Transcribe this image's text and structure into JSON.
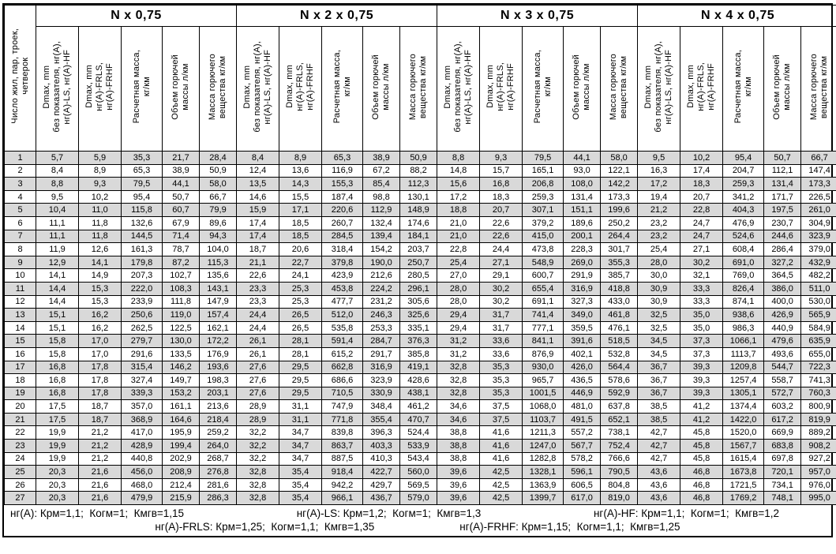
{
  "table": {
    "corner_header": "Число жил, пар, троек,\nчетверок",
    "groups": [
      {
        "title": "N x 0,75"
      },
      {
        "title": "N x 2 x 0,75"
      },
      {
        "title": "N x 3 x 0,75"
      },
      {
        "title": "N x 4 x 0,75"
      }
    ],
    "subcolumns": [
      "Dmax, mm\nбез показателя, нг(А),\nнг(А)-LS, нг(А)-HF",
      "Dmax, mm\nнг(А)-FRLS,\nнг(А)-FRHF",
      "Расчетная масса,\nкг/км",
      "Объем горючей\nмассы л/км",
      "Масса горючего\nвещества кг/км"
    ],
    "rows": [
      [
        "1",
        "5,7",
        "5,9",
        "35,3",
        "21,7",
        "28,4",
        "8,4",
        "8,9",
        "65,3",
        "38,9",
        "50,9",
        "8,8",
        "9,3",
        "79,5",
        "44,1",
        "58,0",
        "9,5",
        "10,2",
        "95,4",
        "50,7",
        "66,7"
      ],
      [
        "2",
        "8,4",
        "8,9",
        "65,3",
        "38,9",
        "50,9",
        "12,4",
        "13,6",
        "116,9",
        "67,2",
        "88,2",
        "14,8",
        "15,7",
        "165,1",
        "93,0",
        "122,1",
        "16,3",
        "17,4",
        "204,7",
        "112,1",
        "147,4"
      ],
      [
        "3",
        "8,8",
        "9,3",
        "79,5",
        "44,1",
        "58,0",
        "13,5",
        "14,3",
        "155,3",
        "85,4",
        "112,3",
        "15,6",
        "16,8",
        "206,8",
        "108,0",
        "142,2",
        "17,2",
        "18,3",
        "259,3",
        "131,4",
        "173,3"
      ],
      [
        "4",
        "9,5",
        "10,2",
        "95,4",
        "50,7",
        "66,7",
        "14,6",
        "15,5",
        "187,4",
        "98,8",
        "130,1",
        "17,2",
        "18,3",
        "259,3",
        "131,4",
        "173,3",
        "19,4",
        "20,7",
        "341,2",
        "171,7",
        "226,5"
      ],
      [
        "5",
        "10,4",
        "11,0",
        "115,8",
        "60,7",
        "79,9",
        "15,9",
        "17,1",
        "220,6",
        "112,9",
        "148,9",
        "18,8",
        "20,7",
        "307,1",
        "151,1",
        "199,6",
        "21,2",
        "22,8",
        "404,3",
        "197,5",
        "261,0"
      ],
      [
        "6",
        "11,1",
        "11,8",
        "132,6",
        "67,9",
        "89,6",
        "17,4",
        "18,5",
        "260,7",
        "132,4",
        "174,6",
        "21,0",
        "22,6",
        "379,2",
        "189,6",
        "250,2",
        "23,2",
        "24,7",
        "476,9",
        "230,7",
        "304,9"
      ],
      [
        "7",
        "11,1",
        "11,8",
        "144,5",
        "71,4",
        "94,3",
        "17,4",
        "18,5",
        "284,5",
        "139,4",
        "184,1",
        "21,0",
        "22,6",
        "415,0",
        "200,1",
        "264,4",
        "23,2",
        "24,7",
        "524,6",
        "244,6",
        "323,9"
      ],
      [
        "8",
        "11,9",
        "12,6",
        "161,3",
        "78,7",
        "104,0",
        "18,7",
        "20,6",
        "318,4",
        "154,2",
        "203,7",
        "22,8",
        "24,4",
        "473,8",
        "228,3",
        "301,7",
        "25,4",
        "27,1",
        "608,4",
        "286,4",
        "379,0"
      ],
      [
        "9",
        "12,9",
        "14,1",
        "179,8",
        "87,2",
        "115,3",
        "21,1",
        "22,7",
        "379,8",
        "190,0",
        "250,7",
        "25,4",
        "27,1",
        "548,9",
        "269,0",
        "355,3",
        "28,0",
        "30,2",
        "691,0",
        "327,2",
        "432,9"
      ],
      [
        "10",
        "14,1",
        "14,9",
        "207,3",
        "102,7",
        "135,6",
        "22,6",
        "24,1",
        "423,9",
        "212,6",
        "280,5",
        "27,0",
        "29,1",
        "600,7",
        "291,9",
        "385,7",
        "30,0",
        "32,1",
        "769,0",
        "364,5",
        "482,2"
      ],
      [
        "11",
        "14,4",
        "15,3",
        "222,0",
        "108,3",
        "143,1",
        "23,3",
        "25,3",
        "453,8",
        "224,2",
        "296,1",
        "28,0",
        "30,2",
        "655,4",
        "316,9",
        "418,8",
        "30,9",
        "33,3",
        "826,4",
        "386,0",
        "511,0"
      ],
      [
        "12",
        "14,4",
        "15,3",
        "233,9",
        "111,8",
        "147,9",
        "23,3",
        "25,3",
        "477,7",
        "231,2",
        "305,6",
        "28,0",
        "30,2",
        "691,1",
        "327,3",
        "433,0",
        "30,9",
        "33,3",
        "874,1",
        "400,0",
        "530,0"
      ],
      [
        "13",
        "15,1",
        "16,2",
        "250,6",
        "119,0",
        "157,4",
        "24,4",
        "26,5",
        "512,0",
        "246,3",
        "325,6",
        "29,4",
        "31,7",
        "741,4",
        "349,0",
        "461,8",
        "32,5",
        "35,0",
        "938,6",
        "426,9",
        "565,9"
      ],
      [
        "14",
        "15,1",
        "16,2",
        "262,5",
        "122,5",
        "162,1",
        "24,4",
        "26,5",
        "535,8",
        "253,3",
        "335,1",
        "29,4",
        "31,7",
        "777,1",
        "359,5",
        "476,1",
        "32,5",
        "35,0",
        "986,3",
        "440,9",
        "584,9"
      ],
      [
        "15",
        "15,8",
        "17,0",
        "279,7",
        "130,0",
        "172,2",
        "26,1",
        "28,1",
        "591,4",
        "284,7",
        "376,3",
        "31,2",
        "33,6",
        "841,1",
        "391,6",
        "518,5",
        "34,5",
        "37,3",
        "1066,1",
        "479,6",
        "635,9"
      ],
      [
        "16",
        "15,8",
        "17,0",
        "291,6",
        "133,5",
        "176,9",
        "26,1",
        "28,1",
        "615,2",
        "291,7",
        "385,8",
        "31,2",
        "33,6",
        "876,9",
        "402,1",
        "532,8",
        "34,5",
        "37,3",
        "1113,7",
        "493,6",
        "655,0"
      ],
      [
        "17",
        "16,8",
        "17,8",
        "315,4",
        "146,2",
        "193,6",
        "27,6",
        "29,5",
        "662,8",
        "316,9",
        "419,1",
        "32,8",
        "35,3",
        "930,0",
        "426,0",
        "564,4",
        "36,7",
        "39,3",
        "1209,8",
        "544,7",
        "722,3"
      ],
      [
        "18",
        "16,8",
        "17,8",
        "327,4",
        "149,7",
        "198,3",
        "27,6",
        "29,5",
        "686,6",
        "323,9",
        "428,6",
        "32,8",
        "35,3",
        "965,7",
        "436,5",
        "578,6",
        "36,7",
        "39,3",
        "1257,4",
        "558,7",
        "741,3"
      ],
      [
        "19",
        "16,8",
        "17,8",
        "339,3",
        "153,2",
        "203,1",
        "27,6",
        "29,5",
        "710,5",
        "330,9",
        "438,1",
        "32,8",
        "35,3",
        "1001,5",
        "446,9",
        "592,9",
        "36,7",
        "39,3",
        "1305,1",
        "572,7",
        "760,3"
      ],
      [
        "20",
        "17,5",
        "18,7",
        "357,0",
        "161,1",
        "213,6",
        "28,9",
        "31,1",
        "747,9",
        "348,4",
        "461,2",
        "34,6",
        "37,5",
        "1068,0",
        "481,0",
        "637,8",
        "38,5",
        "41,2",
        "1374,4",
        "603,2",
        "800,9"
      ],
      [
        "21",
        "17,5",
        "18,7",
        "368,9",
        "164,6",
        "218,4",
        "28,9",
        "31,1",
        "771,8",
        "355,4",
        "470,7",
        "34,6",
        "37,5",
        "1103,7",
        "491,5",
        "652,1",
        "38,5",
        "41,2",
        "1422,0",
        "617,2",
        "819,9"
      ],
      [
        "22",
        "19,9",
        "21,2",
        "417,0",
        "195,9",
        "259,2",
        "32,2",
        "34,7",
        "839,8",
        "396,3",
        "524,4",
        "38,8",
        "41,6",
        "1211,3",
        "557,2",
        "738,1",
        "42,7",
        "45,8",
        "1520,0",
        "669,9",
        "889,2"
      ],
      [
        "23",
        "19,9",
        "21,2",
        "428,9",
        "199,4",
        "264,0",
        "32,2",
        "34,7",
        "863,7",
        "403,3",
        "533,9",
        "38,8",
        "41,6",
        "1247,0",
        "567,7",
        "752,4",
        "42,7",
        "45,8",
        "1567,7",
        "683,8",
        "908,2"
      ],
      [
        "24",
        "19,9",
        "21,2",
        "440,8",
        "202,9",
        "268,7",
        "32,2",
        "34,7",
        "887,5",
        "410,3",
        "543,4",
        "38,8",
        "41,6",
        "1282,8",
        "578,2",
        "766,6",
        "42,7",
        "45,8",
        "1615,4",
        "697,8",
        "927,2"
      ],
      [
        "25",
        "20,3",
        "21,6",
        "456,0",
        "208,9",
        "276,8",
        "32,8",
        "35,4",
        "918,4",
        "422,7",
        "560,0",
        "39,6",
        "42,5",
        "1328,1",
        "596,1",
        "790,5",
        "43,6",
        "46,8",
        "1673,8",
        "720,1",
        "957,0"
      ],
      [
        "26",
        "20,3",
        "21,6",
        "468,0",
        "212,4",
        "281,6",
        "32,8",
        "35,4",
        "942,2",
        "429,7",
        "569,5",
        "39,6",
        "42,5",
        "1363,9",
        "606,5",
        "804,8",
        "43,6",
        "46,8",
        "1721,5",
        "734,1",
        "976,0"
      ],
      [
        "27",
        "20,3",
        "21,6",
        "479,9",
        "215,9",
        "286,3",
        "32,8",
        "35,4",
        "966,1",
        "436,7",
        "579,0",
        "39,6",
        "42,5",
        "1399,7",
        "617,0",
        "819,0",
        "43,6",
        "46,8",
        "1769,2",
        "748,1",
        "995,0"
      ]
    ]
  },
  "coefficients": {
    "line1": [
      "нг(А): Крм=1,1;  Когм=1;  Кмгв=1,15",
      "нг(А)-LS: Крм=1,2;  Когм=1;  Кмгв=1,3",
      "нг(А)-HF: Крм=1,1;  Когм=1;  Кмгв=1,2"
    ],
    "line2": [
      "нг(А)-FRLS: Крм=1,25;  Когм=1,1;  Кмгв=1,35",
      "нг(А)-FRHF: Крм=1,15;  Когм=1,1;  Кмгв=1,25"
    ]
  },
  "colors": {
    "shaded_row": "#d9d9d9",
    "border": "#000000"
  }
}
